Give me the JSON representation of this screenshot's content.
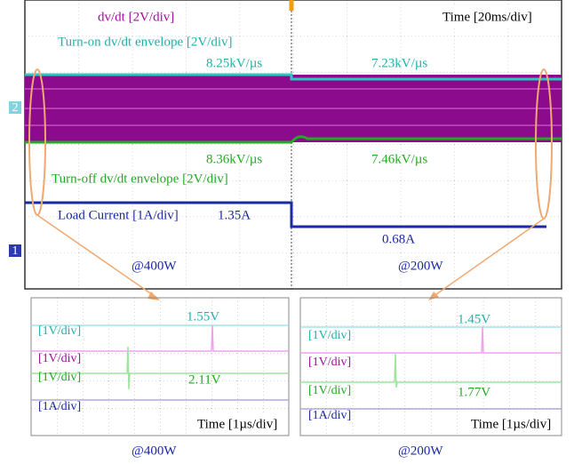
{
  "main_scope": {
    "dvdt_label": "dv/dt [2V/div]",
    "turn_on_label": "Turn-on dv/dt envelope [2V/div]",
    "time_label": "Time [20ms/div]",
    "turn_on_400": "8.25kV/µs",
    "turn_on_200": "7.23kV/µs",
    "turn_off_400": "8.36kV/µs",
    "turn_off_200": "7.46kV/µs",
    "turn_off_label": "Turn-off dv/dt envelope [2V/div]",
    "current_label": "Load Current [1A/div]",
    "current_400": "1.35A",
    "current_200": "0.68A",
    "section_400": "@400W",
    "section_200": "@200W",
    "channel_2": "2",
    "channel_1": "1"
  },
  "zoom_panels": [
    {
      "peak_on": "1.55V",
      "ch_on": "[1V/div]",
      "ch_dvdt": "[1V/div]",
      "ch_off": "[1V/div]",
      "peak_off": "2.11V",
      "ch_current": "[1A/div]",
      "time": "Time [1µs/div]",
      "caption": "@400W"
    },
    {
      "peak_on": "1.45V",
      "ch_on": "[1V/div]",
      "ch_dvdt": "[1V/div]",
      "ch_off": "[1V/div]",
      "peak_off": "1.77V",
      "ch_current": "[1A/div]",
      "time": "Time [1µs/div]",
      "caption": "@200W"
    }
  ]
}
